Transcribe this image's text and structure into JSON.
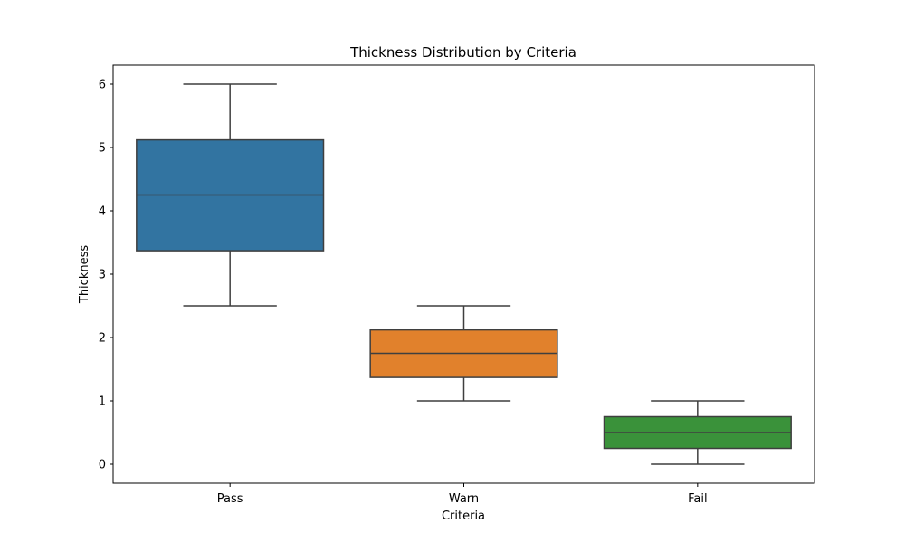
{
  "chart_data": {
    "type": "box",
    "title": "Thickness Distribution by Criteria",
    "xlabel": "Criteria",
    "ylabel": "Thickness",
    "ylim": [
      -0.3,
      6.3
    ],
    "yticks": [
      0,
      1,
      2,
      3,
      4,
      5,
      6
    ],
    "grid": false,
    "categories": [
      "Pass",
      "Warn",
      "Fail"
    ],
    "boxes": [
      {
        "category": "Pass",
        "whisker_low": 2.5,
        "q1": 3.37,
        "median": 4.25,
        "q3": 5.12,
        "whisker_high": 6.0,
        "color": "#3274a1"
      },
      {
        "category": "Warn",
        "whisker_low": 1.0,
        "q1": 1.37,
        "median": 1.75,
        "q3": 2.12,
        "whisker_high": 2.5,
        "color": "#e1812c"
      },
      {
        "category": "Fail",
        "whisker_low": 0.0,
        "q1": 0.25,
        "median": 0.5,
        "q3": 0.75,
        "whisker_high": 1.0,
        "color": "#3a923a"
      }
    ],
    "line_color": "#3f3f3f"
  }
}
